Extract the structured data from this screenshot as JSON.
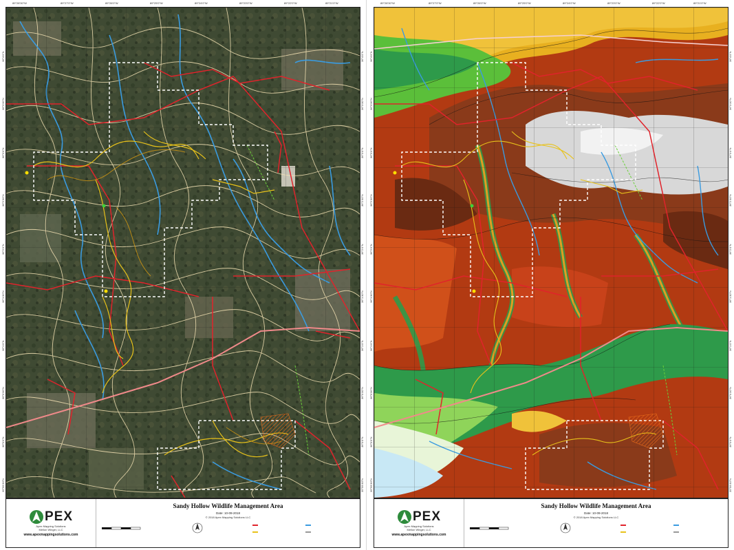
{
  "sheets": [
    {
      "id": "aerial",
      "map_title": "Sandy Hollow Wildlife Management Area",
      "date_label": "Date: 10-09-2018",
      "copyright": "© 2018 Apex Mapping Solutions LLC",
      "website": "www.apexmappingsolutions.com",
      "company_sub": "Apex Mapping Solutions",
      "company_sub2": "Mellon Winger, LLC"
    },
    {
      "id": "elevation",
      "map_title": "Sandy Hollow Wildlife Management Area",
      "date_label": "Date: 10-09-2018",
      "copyright": "© 2018 Apex Mapping Solutions LLC",
      "website": "www.apexmappingsolutions.com",
      "company_sub": "Apex Mapping Solutions",
      "company_sub2": "Mellon Winger, LLC"
    }
  ],
  "logo": {
    "text": "PEX",
    "mark": "A"
  },
  "colors": {
    "roads": "#e0232b",
    "highway": "#f08a8a",
    "streams": "#3a9be0",
    "trails": "#e8c21a",
    "boundary": "#ffffff",
    "contours_aerial": "#f5e3b5",
    "grid": "#111111",
    "fire_lines": "#6bd13a"
  },
  "top_ticks": [
    "89°28'30\"W",
    "89°27'0\"W",
    "89°26'0\"W",
    "89°25'0\"W",
    "89°24'0\"W",
    "89°23'0\"W",
    "89°22'0\"W",
    "89°21'0\"W"
  ],
  "side_ticks": [
    "36°4'0\"N",
    "36°3'30\"N",
    "36°3'0\"N",
    "36°2'30\"N",
    "36°2'0\"N",
    "36°1'30\"N",
    "36°1'0\"N",
    "36°0'30\"N",
    "36°0'0\"N",
    "35°59'30\"N",
    "35°59'0\"N"
  ]
}
